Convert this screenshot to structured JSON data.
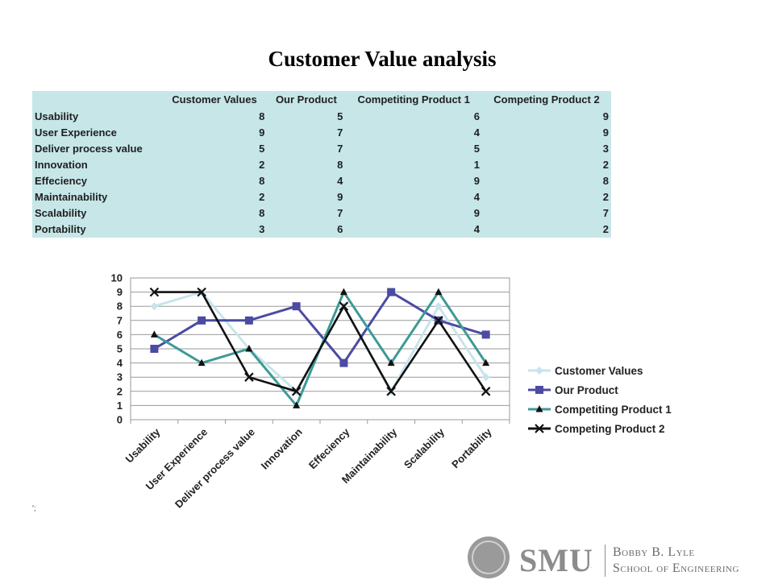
{
  "slide": {
    "title": "Customer Value analysis",
    "stray_mark": "′;"
  },
  "table": {
    "headers": [
      "",
      "Customer Values",
      "Our Product",
      "Competiting Product 1",
      "Competing Product 2"
    ],
    "rows": [
      {
        "label": "Usability",
        "values": [
          8,
          5,
          6,
          9
        ]
      },
      {
        "label": "User Experience",
        "values": [
          9,
          7,
          4,
          9
        ]
      },
      {
        "label": "Deliver process value",
        "values": [
          5,
          7,
          5,
          3
        ]
      },
      {
        "label": "Innovation",
        "values": [
          2,
          8,
          1,
          2
        ]
      },
      {
        "label": "Effeciency",
        "values": [
          8,
          4,
          9,
          8
        ]
      },
      {
        "label": "Maintainability",
        "values": [
          2,
          9,
          4,
          2
        ]
      },
      {
        "label": "Scalability",
        "values": [
          8,
          7,
          9,
          7
        ]
      },
      {
        "label": "Portability",
        "values": [
          3,
          6,
          4,
          2
        ]
      }
    ],
    "background": "#c6e6e8"
  },
  "chart_data": {
    "type": "line",
    "categories": [
      "Usability",
      "User Experience",
      "Deliver process value",
      "Innovation",
      "Effeciency",
      "Maintainability",
      "Scalability",
      "Portability"
    ],
    "ylim": [
      0,
      10
    ],
    "yticks": [
      0,
      1,
      2,
      3,
      4,
      5,
      6,
      7,
      8,
      9,
      10
    ],
    "grid": true,
    "legend_position": "right",
    "series": [
      {
        "name": "Customer Values",
        "values": [
          8,
          9,
          5,
          2,
          8,
          2,
          8,
          3
        ],
        "color": "#c8e4ec",
        "marker": "diamond"
      },
      {
        "name": "Our Product",
        "values": [
          5,
          7,
          7,
          8,
          4,
          9,
          7,
          6
        ],
        "color": "#4b4ba3",
        "marker": "square"
      },
      {
        "name": "Competiting Product 1",
        "values": [
          6,
          4,
          5,
          1,
          9,
          4,
          9,
          4
        ],
        "color": "#3c9a97",
        "marker": "triangle"
      },
      {
        "name": "Competing Product 2",
        "values": [
          9,
          9,
          3,
          2,
          8,
          2,
          7,
          2
        ],
        "color": "#111111",
        "marker": "x"
      }
    ]
  },
  "footer": {
    "brand": "SMU",
    "brand_mark": ".",
    "school_line1": "Bobby B. Lyle",
    "school_line2": "School of Engineering"
  }
}
